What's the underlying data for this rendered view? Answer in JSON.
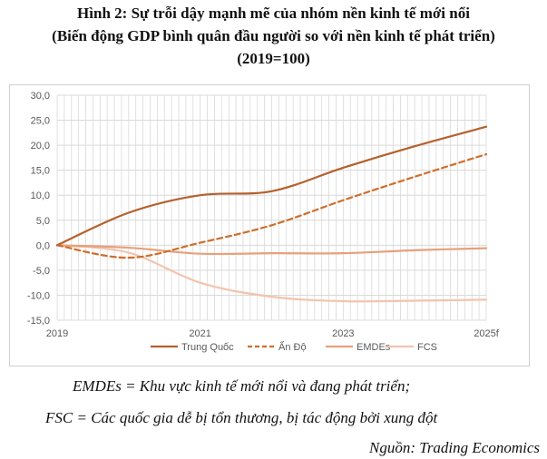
{
  "header": {
    "line1": "Hình 2: Sự trỗi dậy mạnh mẽ của nhóm nền kinh tế mới nổi",
    "line2": "(Biến động GDP bình quân đầu người so với nền kinh tế phát triển)",
    "line3": "(2019=100)"
  },
  "notes": {
    "emdes": "EMDEs = Khu vực kinh tế mới nổi và đang phát triển;",
    "fcs": "FSC = Các quốc gia dễ bị tổn thương, bị tác động bởi xung đột",
    "source": "Nguồn: Trading Economics"
  },
  "colors": {
    "trung_quoc": "#b5602c",
    "an_do": "#cf6d2a",
    "emdes": "#e8a07a",
    "fcs": "#f2c4ae",
    "grid": "#d9d9d9"
  },
  "chart_data": {
    "type": "line",
    "title": "",
    "xlabel": "",
    "ylabel": "",
    "x": [
      "2019",
      "2020",
      "2021",
      "2022",
      "2023",
      "2024",
      "2025f"
    ],
    "x_tick_labels": [
      "2019",
      "2021",
      "2023",
      "2025f"
    ],
    "ylim": [
      -15,
      30
    ],
    "y_tick_labels": [
      "30,0",
      "25,0",
      "20,0",
      "15,0",
      "10,0",
      "5,0",
      "0,0",
      "-5,0",
      "-10,0",
      "-15,0"
    ],
    "grid": true,
    "legend_position": "bottom",
    "series": [
      {
        "name": "Trung Quốc",
        "style": "solid",
        "values": [
          0,
          6.5,
          10,
          10.8,
          15.5,
          19.8,
          23.7
        ]
      },
      {
        "name": "Ấn Độ",
        "style": "dashed",
        "values": [
          0,
          -2.5,
          0.5,
          4,
          9,
          13.7,
          18.2
        ]
      },
      {
        "name": "EMDEs",
        "style": "solid",
        "values": [
          0,
          -0.5,
          -1.7,
          -1.6,
          -1.6,
          -1,
          -0.6
        ]
      },
      {
        "name": "FCS",
        "style": "solid",
        "values": [
          0,
          -1.5,
          -7.5,
          -10.3,
          -11.2,
          -11.1,
          -10.9
        ]
      }
    ]
  }
}
